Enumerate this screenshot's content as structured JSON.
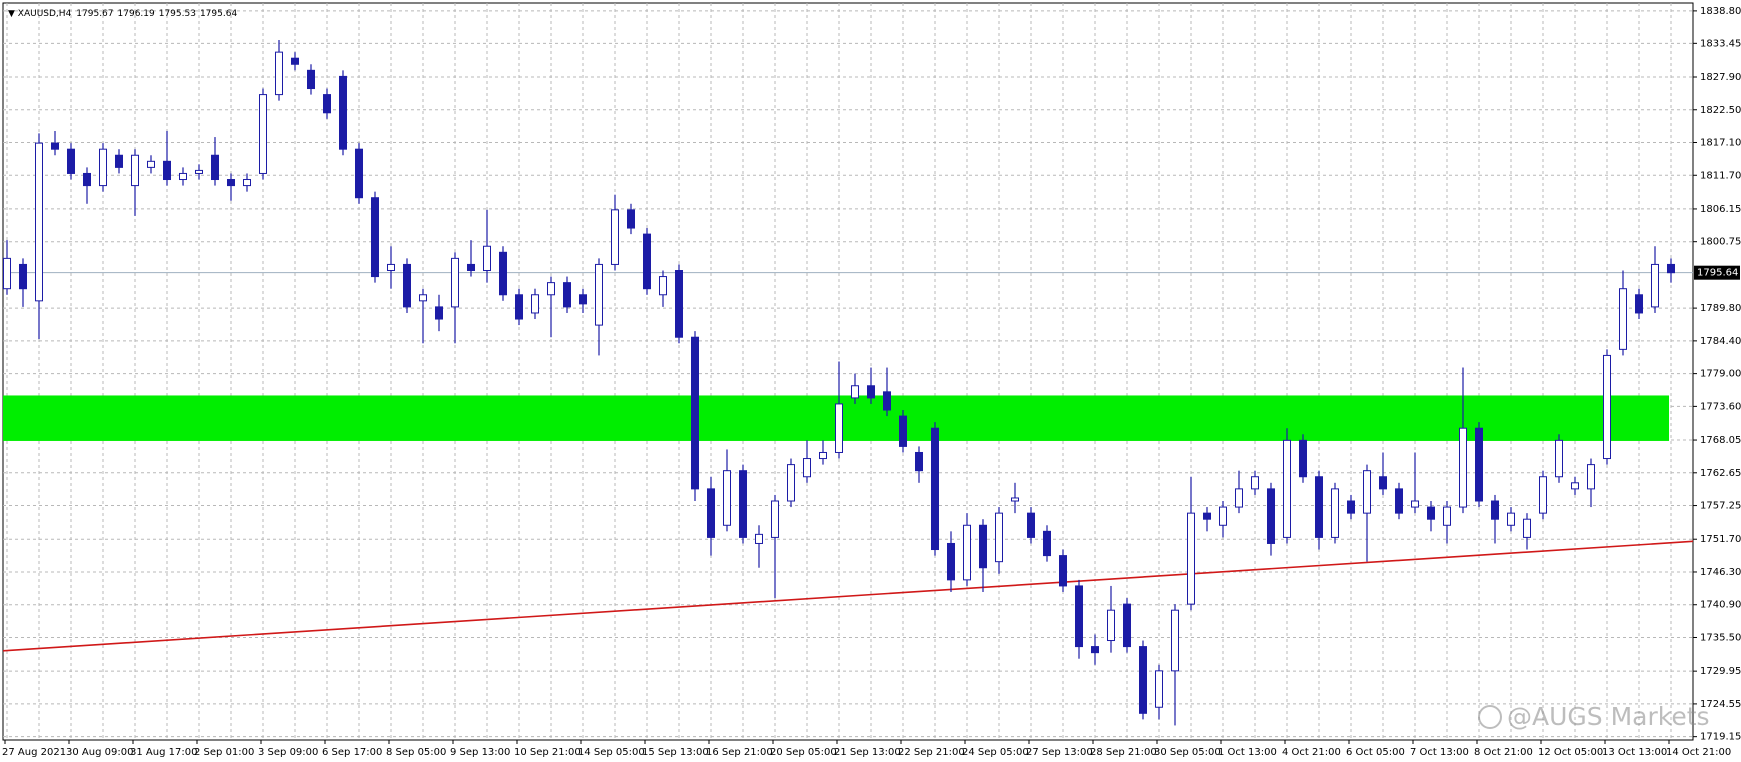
{
  "chart_data": {
    "type": "candlestick",
    "title": "XAUUSD,H4",
    "header_values": [
      1795.67,
      1796.19,
      1795.53,
      1795.64
    ],
    "categories": [
      "27 Aug 2021",
      null,
      null,
      null,
      "30 Aug 09:00",
      null,
      null,
      null,
      "31 Aug 17:00",
      null,
      null,
      null,
      "2 Sep 01:00",
      null,
      null,
      null,
      "3 Sep 09:00",
      null,
      null,
      null,
      "6 Sep 17:00",
      null,
      null,
      null,
      "8 Sep 05:00",
      null,
      null,
      null,
      "9 Sep 13:00",
      null,
      null,
      null,
      "10 Sep 21:00",
      null,
      null,
      null,
      "14 Sep 05:00",
      null,
      null,
      null,
      "15 Sep 13:00",
      null,
      null,
      null,
      "16 Sep 21:00",
      null,
      null,
      null,
      "20 Sep 05:00",
      null,
      null,
      null,
      "21 Sep 13:00",
      null,
      null,
      null,
      "22 Sep 21:00",
      null,
      null,
      null,
      "24 Sep 05:00",
      null,
      null,
      null,
      "27 Sep 13:00",
      null,
      null,
      null,
      "28 Sep 21:00",
      null,
      null,
      null,
      "30 Sep 05:00",
      null,
      null,
      null,
      "1 Oct 13:00",
      null,
      null,
      null,
      "4 Oct 21:00",
      null,
      null,
      null,
      "6 Oct 05:00",
      null,
      null,
      null,
      "7 Oct 13:00",
      null,
      null,
      null,
      "8 Oct 21:00",
      null,
      null,
      null,
      "12 Oct 05:00",
      null,
      null,
      null,
      "13 Oct 13:00",
      null,
      null,
      null,
      "14 Oct 21:00"
    ],
    "open": [
      1793,
      1797,
      1791,
      1817,
      1816,
      1812,
      1810,
      1815,
      1810,
      1813,
      1814,
      1811,
      1812,
      1815,
      1811,
      1810,
      1812,
      1825,
      1831,
      1829,
      1825,
      1828,
      1816,
      1808,
      1796,
      1797,
      1791,
      1790,
      1790,
      1797,
      1796,
      1799,
      1792,
      1789,
      1792,
      1794,
      1792,
      1787,
      1797,
      1806,
      1802,
      1792,
      1796,
      1785,
      1760,
      1754,
      1763,
      1751,
      1752,
      1758,
      1762,
      1765,
      1766,
      1775,
      1777,
      1776,
      1772,
      1766,
      1770,
      1751,
      1745,
      1754,
      1748,
      1758,
      1756,
      1753,
      1749,
      1744,
      1734,
      1735,
      1741,
      1734,
      1724,
      1730,
      1741,
      1756,
      1754,
      1757,
      1760,
      1760,
      1752,
      1768,
      1762,
      1752,
      1758,
      1756,
      1762,
      1760,
      1757,
      1757,
      1754,
      1757,
      1770,
      1758,
      1754,
      1752,
      1756,
      1762,
      1760,
      1760,
      1765,
      1783,
      1792,
      1790,
      1797
    ],
    "high": [
      1801,
      1798,
      1818.6,
      1819,
      1817,
      1813,
      1817,
      1816,
      1816,
      1815,
      1819,
      1813,
      1813.5,
      1818,
      1812,
      1812,
      1826,
      1834,
      1832,
      1830,
      1826,
      1829,
      1817,
      1809,
      1800,
      1798,
      1793,
      1792,
      1799,
      1801,
      1806,
      1800,
      1793,
      1793,
      1795,
      1795,
      1793,
      1798,
      1808.5,
      1807,
      1803,
      1796,
      1797,
      1786,
      1762,
      1766.5,
      1764,
      1754,
      1759,
      1765,
      1768,
      1768,
      1781,
      1779,
      1780,
      1780,
      1773,
      1767,
      1771,
      1753,
      1756,
      1755,
      1757,
      1761,
      1757,
      1754,
      1750,
      1745,
      1736,
      1744,
      1742,
      1735,
      1731,
      1741,
      1762,
      1757,
      1758,
      1763,
      1763,
      1761,
      1770,
      1769,
      1763,
      1761,
      1759,
      1764,
      1766,
      1761,
      1766,
      1758,
      1758,
      1780,
      1771,
      1759,
      1757,
      1756,
      1763,
      1769,
      1762,
      1765,
      1783,
      1796,
      1793,
      1800,
      1798
    ],
    "low": [
      1792,
      1790,
      1784.7,
      1815,
      1811,
      1807,
      1809,
      1812,
      1805,
      1812,
      1810,
      1810,
      1811,
      1810,
      1807.5,
      1809,
      1811,
      1824,
      1829,
      1825,
      1821,
      1815,
      1807,
      1794,
      1793,
      1789,
      1784,
      1786,
      1784,
      1795,
      1794,
      1791,
      1787,
      1788,
      1785,
      1789,
      1789,
      1782,
      1796,
      1802,
      1792,
      1790,
      1784,
      1758,
      1749,
      1753,
      1751,
      1747,
      1742,
      1757,
      1761,
      1764,
      1765,
      1774,
      1774,
      1772,
      1766,
      1761,
      1749,
      1743,
      1744,
      1743,
      1746,
      1756,
      1751,
      1748,
      1743,
      1732,
      1731,
      1733,
      1733,
      1722,
      1722,
      1721,
      1740,
      1753,
      1752,
      1756,
      1759,
      1749,
      1751,
      1761,
      1750,
      1751,
      1755,
      1748,
      1759,
      1755,
      1756,
      1753,
      1751,
      1756,
      1757,
      1751,
      1753,
      1750,
      1755,
      1761,
      1759,
      1757,
      1764,
      1782,
      1788,
      1789,
      1794
    ],
    "close": [
      1798,
      1793,
      1817,
      1816,
      1812,
      1810,
      1816,
      1813,
      1815,
      1814,
      1811,
      1812,
      1812.5,
      1811,
      1810,
      1811,
      1825,
      1832,
      1830,
      1826,
      1822,
      1816,
      1808,
      1795,
      1797,
      1790,
      1792,
      1788,
      1798,
      1796,
      1800,
      1792,
      1788,
      1792,
      1794,
      1790,
      1790.5,
      1797,
      1806,
      1803,
      1793,
      1795,
      1785,
      1760,
      1752,
      1763,
      1752,
      1752.5,
      1758,
      1764,
      1765,
      1766,
      1774,
      1777,
      1775,
      1773,
      1767,
      1763,
      1750,
      1745,
      1754,
      1747,
      1756,
      1758.5,
      1752,
      1749,
      1744,
      1734,
      1733,
      1740,
      1734,
      1723,
      1730,
      1740,
      1756,
      1755,
      1757,
      1760,
      1762,
      1751,
      1768,
      1762,
      1752,
      1760,
      1756,
      1763,
      1760,
      1756,
      1758,
      1755,
      1757,
      1770,
      1758,
      1755,
      1756,
      1755,
      1762,
      1768,
      1761,
      1764,
      1782,
      1793,
      1789,
      1797,
      1795.64
    ],
    "up_color": "#ffffff",
    "down_color": "#1c1ca6",
    "wick_color": "#1c1ca6",
    "ylim": [
      1718.6,
      1840.1
    ],
    "yticks": [
      {
        "value": 1838.8,
        "label": "1838.80"
      },
      {
        "value": 1833.45,
        "label": "1833.45"
      },
      {
        "value": 1827.9,
        "label": "1827.90"
      },
      {
        "value": 1822.5,
        "label": "1822.50"
      },
      {
        "value": 1817.1,
        "label": "1817.10"
      },
      {
        "value": 1811.7,
        "label": "1811.70"
      },
      {
        "value": 1806.15,
        "label": "1806.15"
      },
      {
        "value": 1800.75,
        "label": "1800.75"
      },
      {
        "value": 1789.8,
        "label": "1789.80"
      },
      {
        "value": 1784.4,
        "label": "1784.40"
      },
      {
        "value": 1779,
        "label": "1779.00"
      },
      {
        "value": 1773.6,
        "label": "1773.60"
      },
      {
        "value": 1768.05,
        "label": "1768.05"
      },
      {
        "value": 1762.65,
        "label": "1762.65"
      },
      {
        "value": 1757.25,
        "label": "1757.25"
      },
      {
        "value": 1751.7,
        "label": "1751.70"
      },
      {
        "value": 1746.3,
        "label": "1746.30"
      },
      {
        "value": 1740.9,
        "label": "1740.90"
      },
      {
        "value": 1735.5,
        "label": "1735.50"
      },
      {
        "value": 1729.95,
        "label": "1729.95"
      },
      {
        "value": 1724.55,
        "label": "1724.55"
      },
      {
        "value": 1719.15,
        "label": "1719.15"
      }
    ],
    "grid": true,
    "price_line": {
      "value": 1795.64,
      "color": "#9fb0c0"
    },
    "zone": {
      "low": 1767.9,
      "high": 1775.4,
      "color": "#00ee00"
    },
    "trendline": {
      "x": [
        0,
        105.8
      ],
      "y": [
        1733.3,
        1751.4
      ],
      "color": "#d01818"
    },
    "watermark": "@AUGS Markets"
  }
}
